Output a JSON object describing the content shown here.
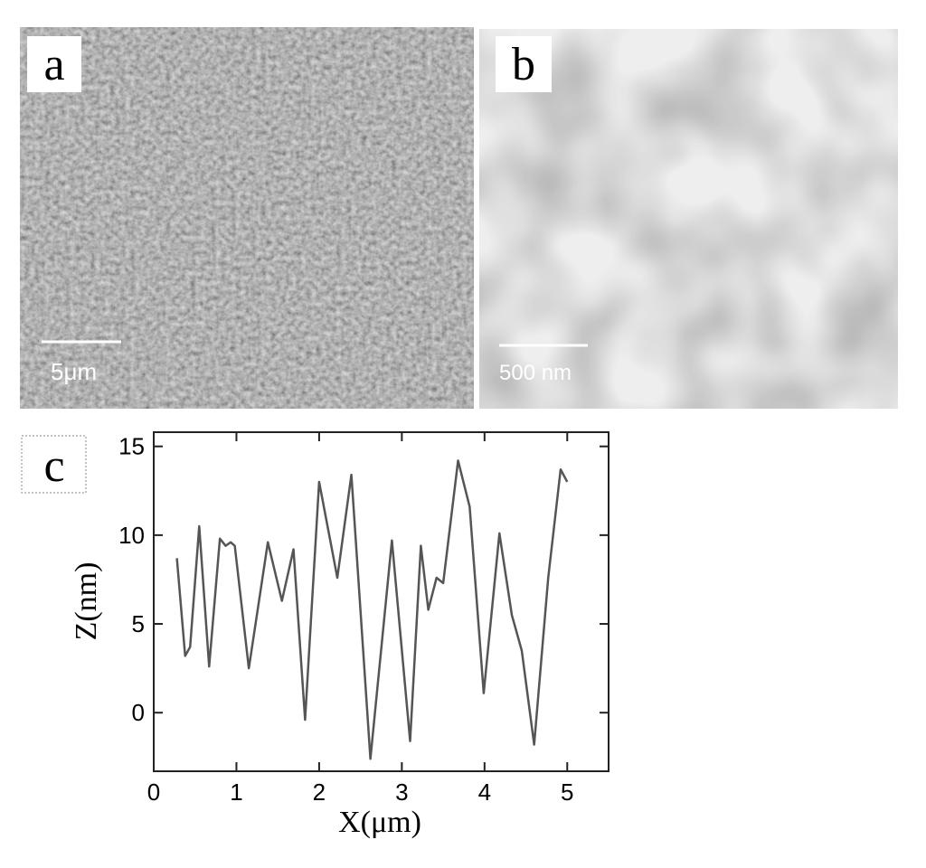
{
  "panels": [
    {
      "label": "a",
      "scale_bar": "5μm"
    },
    {
      "label": "b",
      "scale_bar": "500 nm"
    }
  ],
  "chart_data": {
    "type": "line",
    "label": "c",
    "xlabel": "X(μm)",
    "ylabel": "Z(nm)",
    "color": "#555555",
    "x": [
      0.28,
      0.38,
      0.44,
      0.55,
      0.67,
      0.8,
      0.87,
      0.93,
      0.98,
      1.15,
      1.38,
      1.55,
      1.69,
      1.83,
      2.0,
      2.22,
      2.39,
      2.62,
      2.88,
      3.1,
      3.23,
      3.32,
      3.42,
      3.5,
      3.68,
      3.82,
      3.99,
      4.18,
      4.33,
      4.45,
      4.6,
      4.77,
      4.92,
      5.0
    ],
    "values": [
      8.7,
      3.2,
      3.7,
      10.5,
      2.6,
      9.8,
      9.4,
      9.6,
      9.4,
      2.5,
      9.6,
      6.3,
      9.2,
      -0.4,
      13.0,
      7.6,
      13.4,
      -2.6,
      9.7,
      -1.6,
      9.4,
      5.8,
      7.6,
      7.3,
      14.2,
      11.6,
      1.1,
      10.1,
      5.5,
      3.5,
      -1.8,
      7.6,
      13.7,
      13.0
    ],
    "xlim": [
      0,
      5.5
    ],
    "ylim": [
      -3.3,
      15.8
    ],
    "xticks": [
      0,
      1,
      2,
      3,
      4,
      5
    ],
    "yticks": [
      0,
      5,
      10,
      15
    ]
  }
}
